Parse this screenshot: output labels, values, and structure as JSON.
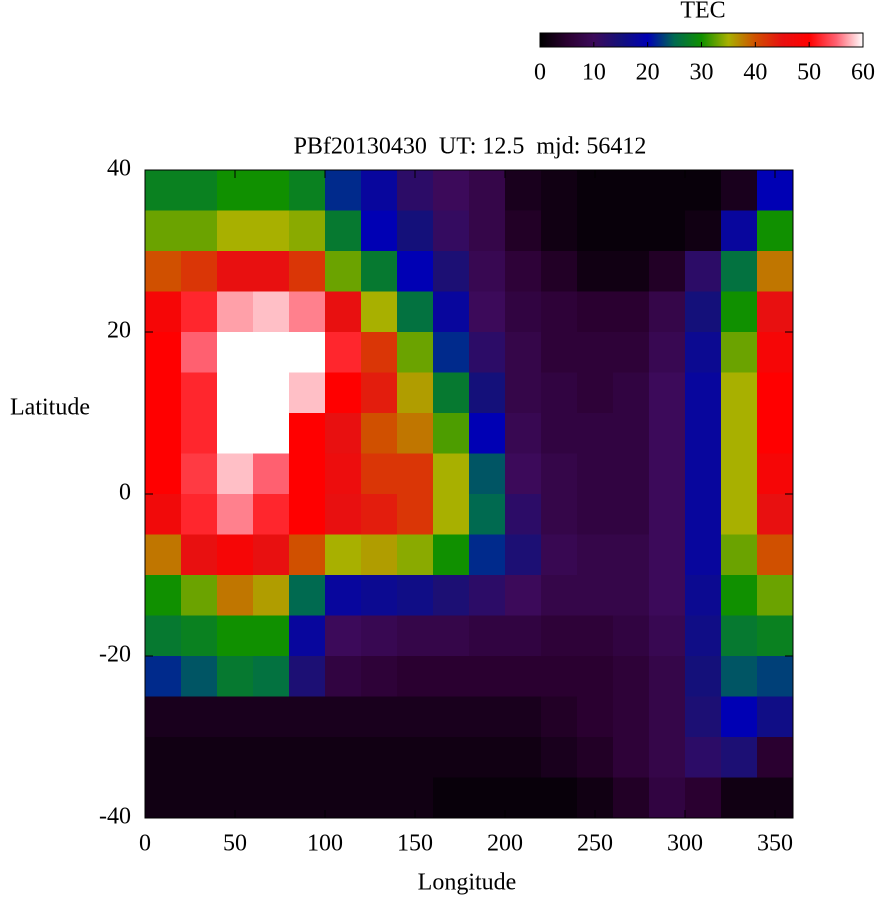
{
  "chart_data": {
    "type": "heatmap",
    "title": "PBf20130430  UT: 12.5  mjd: 56412",
    "x_label": "Longitude",
    "y_label": "Latitude",
    "colorbar_label": "TEC",
    "x": [
      10,
      30,
      50,
      70,
      90,
      110,
      130,
      150,
      170,
      190,
      210,
      230,
      250,
      270,
      290,
      310,
      330,
      350
    ],
    "y": [
      37.5,
      32.5,
      27.5,
      22.5,
      17.5,
      12.5,
      7.5,
      2.5,
      -2.5,
      -7.5,
      -12.5,
      -17.5,
      -22.5,
      -27.5,
      -32.5,
      -37.5
    ],
    "z": [
      [
        28,
        28,
        30,
        30,
        28,
        22,
        18,
        12,
        10,
        8,
        3,
        2,
        1,
        1,
        1,
        1,
        3,
        20
      ],
      [
        33,
        33,
        35,
        35,
        34,
        27,
        20,
        15,
        11,
        8,
        4,
        2,
        1,
        1,
        1,
        2,
        18,
        30
      ],
      [
        40,
        42,
        45,
        45,
        42,
        33,
        27,
        20,
        14,
        9,
        6,
        4,
        2,
        2,
        4,
        12,
        26,
        38
      ],
      [
        48,
        52,
        57,
        58,
        56,
        45,
        35,
        26,
        18,
        10,
        7,
        6,
        5,
        5,
        8,
        15,
        30,
        45
      ],
      [
        50,
        55,
        60,
        60,
        60,
        52,
        42,
        33,
        22,
        12,
        8,
        6,
        6,
        6,
        9,
        17,
        33,
        48
      ],
      [
        50,
        52,
        60,
        60,
        58,
        50,
        44,
        36,
        27,
        15,
        8,
        7,
        6,
        7,
        10,
        18,
        35,
        50
      ],
      [
        50,
        52,
        60,
        60,
        50,
        45,
        40,
        38,
        32,
        20,
        9,
        7,
        7,
        7,
        10,
        18,
        35,
        50
      ],
      [
        50,
        53,
        58,
        55,
        50,
        46,
        42,
        42,
        35,
        24,
        10,
        8,
        7,
        7,
        10,
        18,
        35,
        48
      ],
      [
        47,
        52,
        56,
        52,
        50,
        45,
        44,
        42,
        35,
        25,
        12,
        8,
        7,
        7,
        10,
        18,
        35,
        45
      ],
      [
        38,
        45,
        48,
        45,
        40,
        35,
        36,
        34,
        30,
        22,
        14,
        9,
        8,
        8,
        10,
        18,
        33,
        40
      ],
      [
        30,
        33,
        38,
        36,
        25,
        18,
        17,
        16,
        14,
        12,
        10,
        8,
        8,
        8,
        10,
        17,
        30,
        33
      ],
      [
        27,
        28,
        30,
        30,
        18,
        10,
        9,
        8,
        8,
        7,
        7,
        6,
        6,
        7,
        9,
        16,
        27,
        28
      ],
      [
        22,
        24,
        27,
        26,
        14,
        7,
        6,
        5,
        5,
        5,
        5,
        5,
        5,
        6,
        8,
        15,
        24,
        23
      ],
      [
        3,
        3,
        3,
        3,
        3,
        3,
        3,
        3,
        3,
        3,
        3,
        4,
        5,
        6,
        8,
        14,
        20,
        16
      ],
      [
        2,
        2,
        2,
        2,
        2,
        2,
        2,
        2,
        2,
        2,
        2,
        3,
        4,
        6,
        8,
        12,
        14,
        5
      ],
      [
        2,
        2,
        2,
        2,
        2,
        2,
        2,
        2,
        1,
        1,
        1,
        1,
        2,
        4,
        7,
        5,
        2,
        2
      ]
    ],
    "xlim": [
      0,
      360
    ],
    "xticks": [
      0,
      50,
      100,
      150,
      200,
      250,
      300,
      350
    ],
    "ylim": [
      -40,
      40
    ],
    "yticks": [
      -40,
      -20,
      0,
      20,
      40
    ],
    "zlim": [
      0,
      60
    ],
    "zticks": [
      0,
      10,
      20,
      30,
      40,
      50,
      60
    ],
    "colormap": [
      "#000000",
      "#2a0030",
      "#3c0a5a",
      "#14107a",
      "#0000b4",
      "#006a50",
      "#109000",
      "#a8b000",
      "#d05000",
      "#e81010",
      "#ff0000",
      "#ff6070",
      "#ffffff"
    ]
  }
}
